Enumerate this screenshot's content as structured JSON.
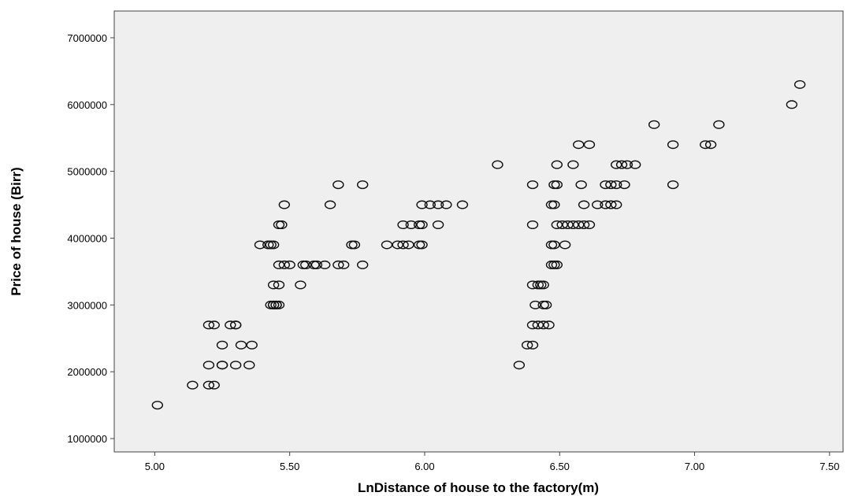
{
  "chart_data": {
    "type": "scatter",
    "title": "",
    "xlabel": "LnDistance of house to the factory(m)",
    "ylabel": "Price of house (Birr)",
    "xlim": [
      4.85,
      7.55
    ],
    "ylim": [
      800000,
      7400000
    ],
    "x_ticks": [
      {
        "value": 5.0,
        "label": "5.00"
      },
      {
        "value": 5.5,
        "label": "5.50"
      },
      {
        "value": 6.0,
        "label": "6.00"
      },
      {
        "value": 6.5,
        "label": "6.50"
      },
      {
        "value": 7.0,
        "label": "7.00"
      },
      {
        "value": 7.5,
        "label": "7.50"
      }
    ],
    "y_ticks": [
      {
        "value": 1000000,
        "label": "1000000"
      },
      {
        "value": 2000000,
        "label": "2000000"
      },
      {
        "value": 3000000,
        "label": "3000000"
      },
      {
        "value": 4000000,
        "label": "4000000"
      },
      {
        "value": 5000000,
        "label": "5000000"
      },
      {
        "value": 6000000,
        "label": "6000000"
      },
      {
        "value": 7000000,
        "label": "7000000"
      }
    ],
    "grid": false,
    "plot_background": "#efefef",
    "marker_color": "#111111",
    "points": [
      [
        5.01,
        1500000
      ],
      [
        5.14,
        1800000
      ],
      [
        5.2,
        1800000
      ],
      [
        5.22,
        1800000
      ],
      [
        5.2,
        2100000
      ],
      [
        5.25,
        2100000
      ],
      [
        5.25,
        2100000
      ],
      [
        5.3,
        2100000
      ],
      [
        5.35,
        2100000
      ],
      [
        5.25,
        2400000
      ],
      [
        5.32,
        2400000
      ],
      [
        5.36,
        2400000
      ],
      [
        5.2,
        2700000
      ],
      [
        5.22,
        2700000
      ],
      [
        5.28,
        2700000
      ],
      [
        5.3,
        2700000
      ],
      [
        5.3,
        2700000
      ],
      [
        5.43,
        3000000
      ],
      [
        5.44,
        3000000
      ],
      [
        5.45,
        3000000
      ],
      [
        5.46,
        3000000
      ],
      [
        5.44,
        3000000
      ],
      [
        5.45,
        3000000
      ],
      [
        5.44,
        3300000
      ],
      [
        5.46,
        3300000
      ],
      [
        5.54,
        3300000
      ],
      [
        5.46,
        3600000
      ],
      [
        5.48,
        3600000
      ],
      [
        5.5,
        3600000
      ],
      [
        5.55,
        3600000
      ],
      [
        5.56,
        3600000
      ],
      [
        5.59,
        3600000
      ],
      [
        5.6,
        3600000
      ],
      [
        5.63,
        3600000
      ],
      [
        5.68,
        3600000
      ],
      [
        5.7,
        3600000
      ],
      [
        5.77,
        3600000
      ],
      [
        5.39,
        3900000
      ],
      [
        5.42,
        3900000
      ],
      [
        5.43,
        3900000
      ],
      [
        5.44,
        3900000
      ],
      [
        5.73,
        3900000
      ],
      [
        5.74,
        3900000
      ],
      [
        5.86,
        3900000
      ],
      [
        5.9,
        3900000
      ],
      [
        5.92,
        3900000
      ],
      [
        5.94,
        3900000
      ],
      [
        5.98,
        3900000
      ],
      [
        5.99,
        3900000
      ],
      [
        5.46,
        4200000
      ],
      [
        5.47,
        4200000
      ],
      [
        5.92,
        4200000
      ],
      [
        5.95,
        4200000
      ],
      [
        5.98,
        4200000
      ],
      [
        5.99,
        4200000
      ],
      [
        6.05,
        4200000
      ],
      [
        5.48,
        4500000
      ],
      [
        5.65,
        4500000
      ],
      [
        5.99,
        4500000
      ],
      [
        6.02,
        4500000
      ],
      [
        6.05,
        4500000
      ],
      [
        6.08,
        4500000
      ],
      [
        6.14,
        4500000
      ],
      [
        5.68,
        4800000
      ],
      [
        5.77,
        4800000
      ],
      [
        6.35,
        2100000
      ],
      [
        6.38,
        2400000
      ],
      [
        6.4,
        2400000
      ],
      [
        6.4,
        2700000
      ],
      [
        6.42,
        2700000
      ],
      [
        6.44,
        2700000
      ],
      [
        6.46,
        2700000
      ],
      [
        6.41,
        3000000
      ],
      [
        6.44,
        3000000
      ],
      [
        6.45,
        3000000
      ],
      [
        6.4,
        3300000
      ],
      [
        6.42,
        3300000
      ],
      [
        6.43,
        3300000
      ],
      [
        6.44,
        3300000
      ],
      [
        6.47,
        3600000
      ],
      [
        6.48,
        3600000
      ],
      [
        6.49,
        3600000
      ],
      [
        6.47,
        3900000
      ],
      [
        6.48,
        3900000
      ],
      [
        6.52,
        3900000
      ],
      [
        6.4,
        4200000
      ],
      [
        6.49,
        4200000
      ],
      [
        6.51,
        4200000
      ],
      [
        6.53,
        4200000
      ],
      [
        6.55,
        4200000
      ],
      [
        6.57,
        4200000
      ],
      [
        6.59,
        4200000
      ],
      [
        6.61,
        4200000
      ],
      [
        6.47,
        4500000
      ],
      [
        6.48,
        4500000
      ],
      [
        6.59,
        4500000
      ],
      [
        6.64,
        4500000
      ],
      [
        6.67,
        4500000
      ],
      [
        6.69,
        4500000
      ],
      [
        6.71,
        4500000
      ],
      [
        6.4,
        4800000
      ],
      [
        6.48,
        4800000
      ],
      [
        6.49,
        4800000
      ],
      [
        6.58,
        4800000
      ],
      [
        6.67,
        4800000
      ],
      [
        6.69,
        4800000
      ],
      [
        6.71,
        4800000
      ],
      [
        6.74,
        4800000
      ],
      [
        6.92,
        4800000
      ],
      [
        6.27,
        5100000
      ],
      [
        6.49,
        5100000
      ],
      [
        6.55,
        5100000
      ],
      [
        6.71,
        5100000
      ],
      [
        6.73,
        5100000
      ],
      [
        6.75,
        5100000
      ],
      [
        6.78,
        5100000
      ],
      [
        6.57,
        5400000
      ],
      [
        6.61,
        5400000
      ],
      [
        6.92,
        5400000
      ],
      [
        7.04,
        5400000
      ],
      [
        7.06,
        5400000
      ],
      [
        6.85,
        5700000
      ],
      [
        7.09,
        5700000
      ],
      [
        7.36,
        6000000
      ],
      [
        7.39,
        6300000
      ]
    ]
  }
}
